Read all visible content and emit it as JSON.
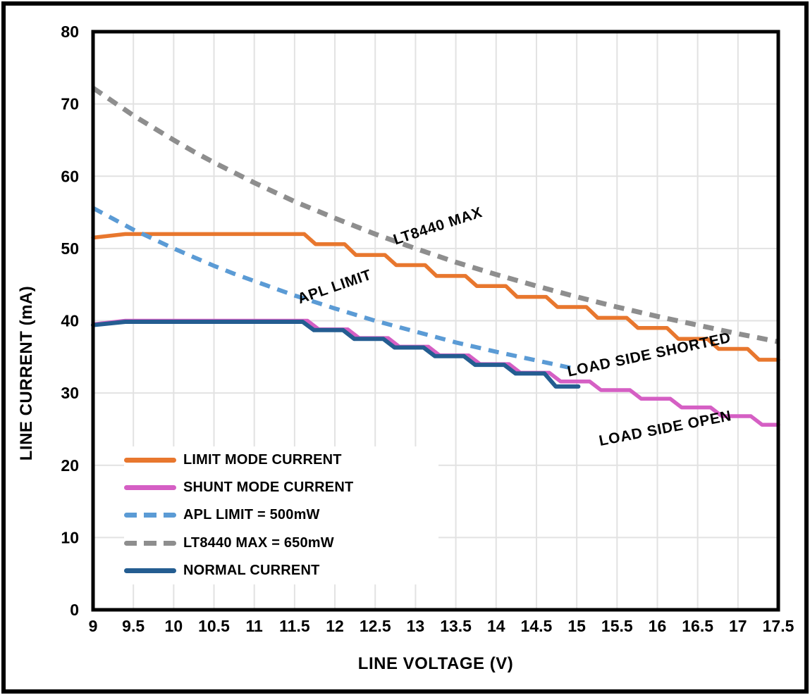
{
  "window": {
    "background": "#ffffff",
    "border_color": "#000000"
  },
  "chart_data": {
    "type": "line",
    "title": "",
    "xlabel": "LINE VOLTAGE (V)",
    "ylabel": "LINE CURRENT (mA)",
    "xlim": [
      9,
      17.5
    ],
    "ylim": [
      0,
      80
    ],
    "grid": true,
    "gridline_color": "#e2e2e2",
    "plot_border_color": "#000000",
    "x_ticks": [
      9,
      9.5,
      10,
      10.5,
      11,
      11.5,
      12,
      12.5,
      13,
      13.5,
      14,
      14.5,
      15,
      15.5,
      16,
      16.5,
      17,
      17.5
    ],
    "x_tick_labels": [
      "9",
      "9.5",
      "10",
      "10.5",
      "11",
      "11.5",
      "12",
      "12.5",
      "13",
      "13.5",
      "14",
      "14.5",
      "15",
      "15.5",
      "16",
      "16.5",
      "17",
      "17.5"
    ],
    "y_ticks": [
      0,
      10,
      20,
      30,
      40,
      50,
      60,
      70,
      80
    ],
    "y_tick_labels": [
      "0",
      "10",
      "20",
      "30",
      "40",
      "50",
      "60",
      "70",
      "80"
    ],
    "legend_position": "inside lower-left",
    "draw_order": [
      0,
      1,
      3,
      2,
      4
    ],
    "series": [
      {
        "name": "LIMIT MODE CURRENT",
        "color": "#E8772E",
        "line_style": "solid",
        "line_width": 5.5,
        "points": [
          [
            9,
            51.5
          ],
          [
            9.4,
            52
          ],
          [
            11.62,
            52
          ],
          [
            11.76,
            50.6
          ],
          [
            12.12,
            50.6
          ],
          [
            12.26,
            49.1
          ],
          [
            12.62,
            49.1
          ],
          [
            12.76,
            47.7
          ],
          [
            13.12,
            47.7
          ],
          [
            13.26,
            46.2
          ],
          [
            13.62,
            46.2
          ],
          [
            13.76,
            44.8
          ],
          [
            14.12,
            44.8
          ],
          [
            14.26,
            43.3
          ],
          [
            14.62,
            43.3
          ],
          [
            14.76,
            41.9
          ],
          [
            15.12,
            41.9
          ],
          [
            15.26,
            40.4
          ],
          [
            15.62,
            40.4
          ],
          [
            15.76,
            39.0
          ],
          [
            16.12,
            39.0
          ],
          [
            16.26,
            37.5
          ],
          [
            16.62,
            37.5
          ],
          [
            16.76,
            36.1
          ],
          [
            17.12,
            36.1
          ],
          [
            17.26,
            34.6
          ],
          [
            17.5,
            34.6
          ]
        ]
      },
      {
        "name": "SHUNT MODE CURRENT",
        "color": "#D55FC4",
        "line_style": "solid",
        "line_width": 5.5,
        "points": [
          [
            9,
            39.5
          ],
          [
            9.4,
            40
          ],
          [
            11.66,
            40
          ],
          [
            11.8,
            38.8
          ],
          [
            12.16,
            38.8
          ],
          [
            12.3,
            37.6
          ],
          [
            12.66,
            37.6
          ],
          [
            12.8,
            36.4
          ],
          [
            13.16,
            36.4
          ],
          [
            13.3,
            35.2
          ],
          [
            13.66,
            35.2
          ],
          [
            13.8,
            34.0
          ],
          [
            14.16,
            34.0
          ],
          [
            14.3,
            32.8
          ],
          [
            14.66,
            32.8
          ],
          [
            14.8,
            31.6
          ],
          [
            15.16,
            31.6
          ],
          [
            15.3,
            30.4
          ],
          [
            15.66,
            30.4
          ],
          [
            15.8,
            29.2
          ],
          [
            16.16,
            29.2
          ],
          [
            16.3,
            28.0
          ],
          [
            16.66,
            28.0
          ],
          [
            16.8,
            26.8
          ],
          [
            17.16,
            26.8
          ],
          [
            17.3,
            25.6
          ],
          [
            17.5,
            25.6
          ]
        ]
      },
      {
        "name": "APL LIMIT = 500mW",
        "color": "#5B9BD5",
        "line_style": "dashed",
        "line_width": 6,
        "points": [
          [
            9,
            55.6
          ],
          [
            9.25,
            54.1
          ],
          [
            9.5,
            52.6
          ],
          [
            9.75,
            51.3
          ],
          [
            10,
            50
          ],
          [
            10.25,
            48.8
          ],
          [
            10.5,
            47.6
          ],
          [
            10.75,
            46.5
          ],
          [
            11,
            45.5
          ],
          [
            11.5,
            43.5
          ],
          [
            12,
            41.7
          ],
          [
            12.5,
            40
          ],
          [
            13,
            38.5
          ],
          [
            13.5,
            37
          ],
          [
            14,
            35.7
          ],
          [
            14.5,
            34.5
          ],
          [
            15,
            33.3
          ]
        ]
      },
      {
        "name": "LT8440 MAX = 650mW",
        "color": "#8E8E8E",
        "line_style": "dashed",
        "line_width": 7,
        "points": [
          [
            9,
            72.2
          ],
          [
            9.25,
            70.3
          ],
          [
            9.5,
            68.4
          ],
          [
            9.75,
            66.7
          ],
          [
            10,
            65
          ],
          [
            10.25,
            63.4
          ],
          [
            10.5,
            61.9
          ],
          [
            10.75,
            60.5
          ],
          [
            11,
            59.1
          ],
          [
            11.5,
            56.5
          ],
          [
            12,
            54.2
          ],
          [
            12.5,
            52
          ],
          [
            13,
            50
          ],
          [
            13.5,
            48.1
          ],
          [
            14,
            46.4
          ],
          [
            14.5,
            44.8
          ],
          [
            15,
            43.3
          ],
          [
            15.5,
            41.9
          ],
          [
            16,
            40.6
          ],
          [
            16.5,
            39.4
          ],
          [
            17,
            38.2
          ],
          [
            17.5,
            37.1
          ]
        ]
      },
      {
        "name": "NORMAL CURRENT",
        "color": "#245D91",
        "line_style": "solid",
        "line_width": 6,
        "points": [
          [
            9,
            39.4
          ],
          [
            9.4,
            39.85
          ],
          [
            11.6,
            39.85
          ],
          [
            11.74,
            38.7
          ],
          [
            12.1,
            38.7
          ],
          [
            12.24,
            37.5
          ],
          [
            12.6,
            37.5
          ],
          [
            12.74,
            36.3
          ],
          [
            13.1,
            36.3
          ],
          [
            13.24,
            35.1
          ],
          [
            13.6,
            35.1
          ],
          [
            13.74,
            33.9
          ],
          [
            14.1,
            33.9
          ],
          [
            14.24,
            32.7
          ],
          [
            14.6,
            32.7
          ],
          [
            14.74,
            30.9
          ],
          [
            15.02,
            30.9
          ]
        ]
      }
    ],
    "annotations": [
      {
        "text": "LT8440 MAX",
        "x": 13.28,
        "y": 53.0,
        "angle": -18
      },
      {
        "text": "APL LIMIT",
        "x": 12.0,
        "y": 44.6,
        "angle": -19
      },
      {
        "text": "LOAD SIDE SHORTED",
        "x": 15.9,
        "y": 35.2,
        "angle": -12
      },
      {
        "text": "LOAD SIDE OPEN",
        "x": 16.1,
        "y": 25.0,
        "angle": -11
      }
    ]
  }
}
